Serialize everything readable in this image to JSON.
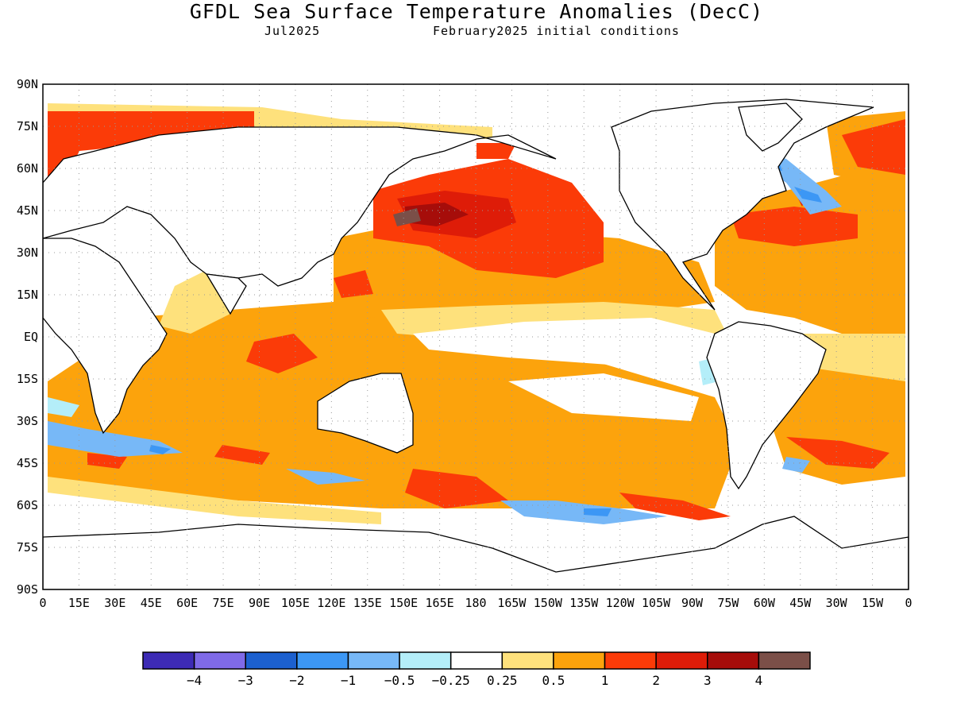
{
  "title": "GFDL Sea Surface Temperature Anomalies (DecC)",
  "subtitle_left": "Jul2025",
  "subtitle_right": "February2025 initial conditions",
  "map": {
    "projection": "equirectangular",
    "lon_range": [
      0,
      360
    ],
    "lat_range": [
      -90,
      90
    ],
    "grid": "dotted",
    "lat_labels": [
      "90N",
      "75N",
      "60N",
      "45N",
      "30N",
      "15N",
      "EQ",
      "15S",
      "30S",
      "45S",
      "60S",
      "75S",
      "90S"
    ],
    "lon_labels": [
      "0",
      "15E",
      "30E",
      "45E",
      "60E",
      "75E",
      "90E",
      "105E",
      "120E",
      "135E",
      "150E",
      "165E",
      "180",
      "165W",
      "150W",
      "135W",
      "120W",
      "105W",
      "90W",
      "75W",
      "60W",
      "45W",
      "30W",
      "15W",
      "0"
    ]
  },
  "colorbar": {
    "colors": [
      "#3d2bb5",
      "#7f6ae8",
      "#1c60cf",
      "#3c97f5",
      "#77b8f7",
      "#b4eef9",
      "#ffffff",
      "#fee17c",
      "#fca30c",
      "#fb3b08",
      "#de1c08",
      "#a60d0a",
      "#7b4f48"
    ],
    "labels": [
      "−4",
      "−3",
      "−2",
      "−1",
      "−0.5",
      "−0.25",
      "0.25",
      "0.5",
      "1",
      "2",
      "3",
      "4"
    ]
  },
  "icons": {
    "legend": "colorbar"
  }
}
